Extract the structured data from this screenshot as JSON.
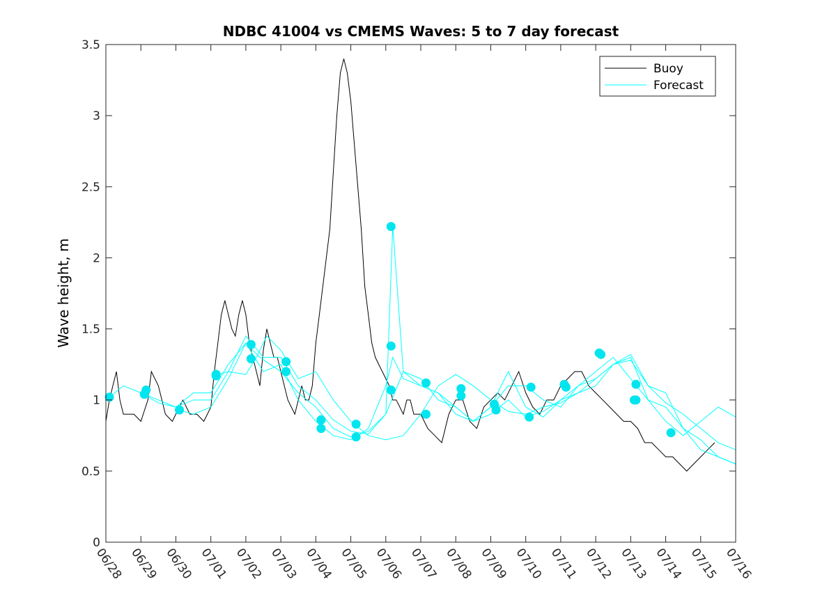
{
  "chart_data": {
    "type": "line",
    "title": "NDBC 41004 vs CMEMS Waves: 5 to 7 day forecast",
    "xlabel": "",
    "ylabel": "Wave height, m",
    "x_ticks": [
      "06/28",
      "06/29",
      "06/30",
      "07/01",
      "07/02",
      "07/03",
      "07/04",
      "07/05",
      "07/06",
      "07/07",
      "07/08",
      "07/09",
      "07/10",
      "07/11",
      "07/12",
      "07/13",
      "07/14",
      "07/15",
      "07/16"
    ],
    "y_ticks": [
      0,
      0.5,
      1,
      1.5,
      2,
      2.5,
      3,
      3.5
    ],
    "xlim_days": [
      0,
      18
    ],
    "ylim": [
      0,
      3.5
    ],
    "legend": {
      "position": "top-right",
      "entries": [
        "Buoy",
        "Forecast"
      ]
    },
    "colors": {
      "buoy": "#000000",
      "forecast": "#00ffff",
      "forecast_marker": "#00e5ee"
    },
    "series": [
      {
        "name": "Buoy",
        "x": [
          0,
          0.1,
          0.2,
          0.3,
          0.4,
          0.5,
          0.6,
          0.8,
          1.0,
          1.2,
          1.3,
          1.5,
          1.6,
          1.7,
          1.9,
          2.0,
          2.2,
          2.4,
          2.6,
          2.8,
          3.0,
          3.1,
          3.2,
          3.3,
          3.4,
          3.5,
          3.6,
          3.7,
          3.8,
          3.9,
          4.0,
          4.1,
          4.2,
          4.3,
          4.4,
          4.5,
          4.6,
          4.7,
          4.8,
          4.9,
          5.0,
          5.1,
          5.2,
          5.3,
          5.4,
          5.5,
          5.6,
          5.7,
          5.8,
          5.9,
          6.0,
          6.1,
          6.2,
          6.3,
          6.4,
          6.5,
          6.6,
          6.7,
          6.8,
          6.9,
          7.0,
          7.1,
          7.2,
          7.3,
          7.4,
          7.5,
          7.6,
          7.7,
          7.8,
          7.9,
          8.0,
          8.1,
          8.2,
          8.3,
          8.4,
          8.5,
          8.6,
          8.7,
          8.8,
          8.9,
          9.0,
          9.1,
          9.2,
          9.4,
          9.6,
          9.8,
          10.0,
          10.2,
          10.4,
          10.6,
          10.8,
          11.0,
          11.2,
          11.4,
          11.6,
          11.8,
          12.0,
          12.2,
          12.4,
          12.6,
          12.8,
          13.0,
          13.2,
          13.4,
          13.6,
          13.8,
          14.0,
          14.2,
          14.4,
          14.6,
          14.8,
          15.0,
          15.2,
          15.4,
          15.6,
          15.8,
          16.0,
          16.2,
          16.4,
          16.6,
          16.8,
          17.0,
          17.2,
          17.4
        ],
        "values": [
          0.85,
          1.0,
          1.1,
          1.2,
          1.0,
          0.9,
          0.9,
          0.9,
          0.85,
          1.0,
          1.2,
          1.1,
          1.0,
          0.9,
          0.85,
          0.9,
          1.0,
          0.9,
          0.9,
          0.85,
          0.95,
          1.2,
          1.4,
          1.6,
          1.7,
          1.6,
          1.5,
          1.45,
          1.6,
          1.7,
          1.6,
          1.4,
          1.3,
          1.2,
          1.1,
          1.35,
          1.5,
          1.4,
          1.3,
          1.3,
          1.2,
          1.1,
          1.0,
          0.95,
          0.9,
          1.0,
          1.1,
          1.0,
          1.0,
          1.1,
          1.4,
          1.6,
          1.8,
          2.0,
          2.2,
          2.6,
          3.0,
          3.3,
          3.4,
          3.3,
          3.1,
          2.8,
          2.5,
          2.2,
          1.8,
          1.6,
          1.4,
          1.3,
          1.25,
          1.2,
          1.15,
          1.1,
          1.0,
          1.0,
          0.95,
          0.9,
          1.0,
          1.0,
          0.9,
          0.9,
          0.9,
          0.85,
          0.8,
          0.75,
          0.7,
          0.9,
          1.0,
          1.0,
          0.85,
          0.8,
          0.95,
          1.0,
          1.05,
          1.0,
          1.1,
          1.2,
          1.05,
          0.95,
          0.9,
          1.0,
          1.0,
          1.1,
          1.15,
          1.2,
          1.2,
          1.1,
          1.05,
          1.0,
          0.95,
          0.9,
          0.85,
          0.85,
          0.8,
          0.7,
          0.7,
          0.65,
          0.6,
          0.6,
          0.55,
          0.5,
          0.55,
          0.6,
          0.65,
          0.7
        ]
      },
      {
        "name": "Forecast",
        "x": [
          0.1,
          0.5,
          1.0,
          1.5,
          2.0,
          2.5,
          3.0,
          3.5,
          4.0,
          4.3,
          4.6,
          5.0,
          5.5,
          6.0,
          6.5,
          7.0,
          7.5,
          8.0,
          8.5,
          9.0,
          9.5,
          10.0,
          10.5,
          11.0,
          11.5,
          12.0,
          12.5,
          13.0,
          13.5,
          14.0,
          14.5,
          15.0,
          15.5,
          16.0,
          16.5,
          17.0,
          17.5,
          18.0
        ],
        "values": [
          1.02,
          1.1,
          1.05,
          0.98,
          0.95,
          1.0,
          1.0,
          1.2,
          1.18,
          1.3,
          1.45,
          1.35,
          1.15,
          1.2,
          1.0,
          0.85,
          0.75,
          0.72,
          0.75,
          0.9,
          1.1,
          1.18,
          1.1,
          1.0,
          0.92,
          0.9,
          0.95,
          0.98,
          1.05,
          1.15,
          1.25,
          1.28,
          1.1,
          0.98,
          0.9,
          0.8,
          0.7,
          0.65
        ]
      },
      {
        "name": "",
        "x": [
          1.0,
          1.5,
          2.0,
          2.5,
          3.0,
          3.5,
          4.0,
          4.4,
          5.0,
          5.5,
          6.0,
          6.5,
          7.0,
          7.5,
          8.0,
          8.5,
          9.0,
          9.5,
          10.0,
          10.5,
          11.0,
          11.5,
          12.0,
          12.5,
          13.0,
          13.5,
          14.0,
          14.5,
          15.0,
          15.5,
          16.0,
          16.5,
          17.0,
          17.5,
          18.0
        ],
        "values": [
          1.05,
          1.0,
          0.95,
          1.05,
          1.05,
          1.25,
          1.4,
          1.3,
          1.2,
          1.05,
          0.95,
          0.8,
          0.74,
          0.78,
          0.9,
          1.2,
          1.15,
          1.0,
          0.95,
          0.85,
          0.95,
          1.1,
          1.1,
          1.0,
          0.95,
          1.1,
          1.2,
          1.3,
          1.15,
          1.0,
          0.85,
          0.75,
          0.85,
          0.95,
          0.88
        ]
      },
      {
        "name": "",
        "x": [
          2.1,
          2.5,
          3.0,
          3.5,
          4.0,
          4.5,
          5.0,
          5.5,
          6.0,
          6.5,
          7.0,
          7.5,
          8.0,
          8.2,
          8.5,
          9.0,
          9.5,
          10.0,
          10.5,
          11.0,
          11.5,
          12.0,
          12.5,
          13.0,
          13.5,
          14.0,
          14.5,
          15.0,
          15.5,
          16.0,
          16.5,
          17.0,
          17.5,
          18.0
        ],
        "values": [
          0.93,
          0.9,
          0.95,
          1.15,
          1.4,
          1.2,
          1.25,
          1.0,
          0.85,
          0.75,
          0.72,
          0.8,
          1.1,
          1.3,
          1.15,
          1.1,
          1.05,
          0.9,
          0.85,
          0.9,
          1.0,
          0.88,
          0.92,
          1.0,
          1.1,
          1.15,
          1.25,
          1.3,
          1.0,
          0.95,
          0.8,
          0.72,
          0.6,
          0.55
        ]
      },
      {
        "name": "",
        "x": [
          3.1,
          3.5,
          4.0,
          4.5,
          5.0,
          5.5,
          6.0,
          6.5,
          7.0,
          7.5,
          8.0,
          8.2,
          8.5,
          9.0,
          9.5,
          10.0,
          10.5,
          11.0,
          11.5,
          12.0,
          12.5,
          13.0,
          13.5,
          14.0,
          14.5,
          15.0,
          15.5,
          16.0,
          16.5,
          17.0,
          17.5,
          18.0
        ],
        "values": [
          1.17,
          1.2,
          1.45,
          1.3,
          1.3,
          1.1,
          1.0,
          0.86,
          0.78,
          0.76,
          0.9,
          2.22,
          1.2,
          1.1,
          1.05,
          0.95,
          0.85,
          0.95,
          1.2,
          0.95,
          0.88,
          1.0,
          1.05,
          1.1,
          1.25,
          1.32,
          1.1,
          1.05,
          0.8,
          0.65,
          0.6,
          0.55
        ]
      }
    ],
    "forecast_start_markers": {
      "x": [
        0.1,
        1.1,
        2.1,
        3.15,
        4.15,
        5.15,
        6.15,
        7.15,
        8.15,
        9.15,
        10.15,
        11.1,
        12.1,
        13.1,
        14.1,
        15.1,
        15.15,
        4.15,
        5.15,
        6.15,
        7.15,
        8.15,
        9.15,
        10.15,
        11.15,
        12.15,
        13.15,
        14.15,
        15.15,
        16.15,
        1.15,
        3.15,
        6.15,
        8.15
      ],
      "values": [
        1.02,
        1.04,
        0.93,
        1.17,
        1.39,
        1.27,
        0.86,
        0.83,
        1.38,
        1.12,
        1.08,
        0.97,
        0.88,
        1.11,
        1.33,
        1.0,
        1.11,
        1.29,
        1.2,
        0.8,
        0.74,
        2.22,
        0.9,
        1.03,
        0.93,
        1.09,
        1.09,
        1.32,
        1.0,
        0.77,
        1.07,
        1.18,
        0.86,
        1.07
      ]
    }
  }
}
